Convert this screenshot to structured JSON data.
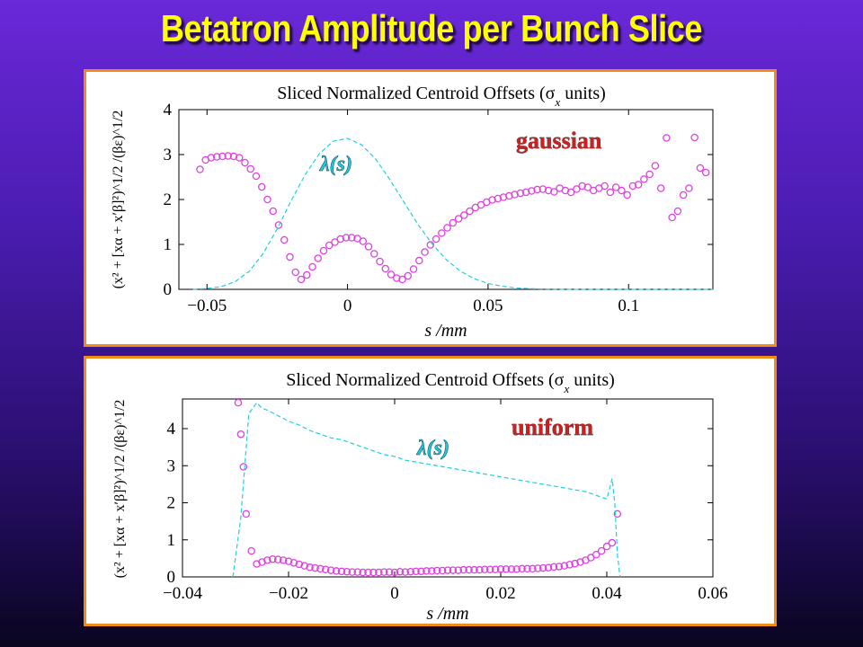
{
  "slide": {
    "title": "Betatron Amplitude per Bunch Slice"
  },
  "chart_data": [
    {
      "type": "scatter",
      "title": "Sliced Normalized Centroid Offsets (σ",
      "title_sub": "x",
      "title_tail": " units)",
      "ylabel": "(x² + [xα + x′β]²)^1/2 /(βε)^1/2",
      "xlabel": "s /mm",
      "annotation": "gaussian",
      "curve_label": "λ(s)",
      "xlim": [
        -0.06,
        0.13
      ],
      "ylim": [
        0,
        4
      ],
      "xticks": [
        -0.05,
        0,
        0.05,
        0.1
      ],
      "xtick_labels": [
        "−0.05",
        "0",
        "0.05",
        "0.1"
      ],
      "yticks": [
        0,
        1,
        2,
        3,
        4
      ],
      "ytick_labels": [
        "0",
        "1",
        "2",
        "3",
        "4"
      ],
      "colors": {
        "points": "#e040e0",
        "curve": "#20d0e0"
      },
      "series": [
        {
          "kind": "points",
          "x": [
            -0.0525,
            -0.0505,
            -0.0485,
            -0.0465,
            -0.0445,
            -0.0425,
            -0.0405,
            -0.0385,
            -0.0365,
            -0.0345,
            -0.0325,
            -0.0305,
            -0.0285,
            -0.0265,
            -0.0245,
            -0.0225,
            -0.0205,
            -0.0185,
            -0.0165,
            -0.0145,
            -0.0125,
            -0.0105,
            -0.0085,
            -0.0065,
            -0.0045,
            -0.0025,
            -0.0005,
            0.0015,
            0.0035,
            0.0055,
            0.0075,
            0.0095,
            0.0115,
            0.0135,
            0.0155,
            0.0175,
            0.0195,
            0.0215,
            0.0235,
            0.0255,
            0.0275,
            0.0295,
            0.0315,
            0.0335,
            0.0355,
            0.0375,
            0.0395,
            0.0415,
            0.0435,
            0.0455,
            0.0475,
            0.0495,
            0.0515,
            0.0535,
            0.0555,
            0.0575,
            0.0595,
            0.0615,
            0.0635,
            0.0655,
            0.0675,
            0.0695,
            0.0715,
            0.0735,
            0.0755,
            0.0775,
            0.0795,
            0.0815,
            0.0835,
            0.0855,
            0.0875,
            0.0895,
            0.0915,
            0.0935,
            0.0955,
            0.0975,
            0.0995,
            0.1015,
            0.1035,
            0.1055,
            0.1075,
            0.1095,
            0.1115,
            0.1135,
            0.1155,
            0.1175,
            0.1195,
            0.1215,
            0.1235,
            0.1255,
            0.1275
          ],
          "y": [
            2.67,
            2.88,
            2.93,
            2.95,
            2.96,
            2.97,
            2.96,
            2.93,
            2.82,
            2.68,
            2.52,
            2.28,
            2.0,
            1.74,
            1.43,
            1.1,
            0.72,
            0.38,
            0.22,
            0.32,
            0.5,
            0.69,
            0.86,
            0.98,
            1.05,
            1.12,
            1.15,
            1.15,
            1.13,
            1.07,
            0.95,
            0.79,
            0.62,
            0.46,
            0.33,
            0.25,
            0.22,
            0.3,
            0.45,
            0.64,
            0.83,
            0.99,
            1.12,
            1.25,
            1.37,
            1.48,
            1.57,
            1.65,
            1.74,
            1.82,
            1.88,
            1.94,
            1.99,
            2.02,
            2.05,
            2.08,
            2.11,
            2.14,
            2.16,
            2.19,
            2.22,
            2.23,
            2.2,
            2.17,
            2.25,
            2.2,
            2.16,
            2.23,
            2.3,
            2.27,
            2.2,
            2.25,
            2.3,
            2.16,
            2.27,
            2.2,
            2.1,
            2.3,
            2.33,
            2.45,
            2.56,
            2.75,
            2.25,
            3.37,
            1.6,
            1.74,
            2.1,
            2.25,
            3.38,
            2.7,
            2.6
          ]
        },
        {
          "kind": "line-dashed",
          "x": [
            -0.055,
            -0.05,
            -0.045,
            -0.04,
            -0.035,
            -0.03,
            -0.025,
            -0.02,
            -0.015,
            -0.01,
            -0.005,
            0,
            0.005,
            0.01,
            0.015,
            0.02,
            0.025,
            0.03,
            0.035,
            0.04,
            0.045,
            0.05,
            0.055,
            0.06,
            0.065,
            0.07,
            0.075,
            0.08,
            0.09,
            0.1,
            0.11,
            0.12,
            0.13
          ],
          "y": [
            0.0,
            0.02,
            0.06,
            0.17,
            0.4,
            0.8,
            1.35,
            1.98,
            2.56,
            3.02,
            3.3,
            3.36,
            3.22,
            2.9,
            2.45,
            1.95,
            1.45,
            1.02,
            0.67,
            0.41,
            0.24,
            0.13,
            0.07,
            0.03,
            0.015,
            0.007,
            0.003,
            0.001,
            0,
            0,
            0,
            0,
            0
          ]
        }
      ]
    },
    {
      "type": "scatter",
      "title": "Sliced Normalized Centroid Offsets (σ",
      "title_sub": "x",
      "title_tail": " units)",
      "ylabel": "(x² + [xα + x′β]²)^1/2 /(βε)^1/2",
      "xlabel": "s /mm",
      "annotation": "uniform",
      "curve_label": "λ(s)",
      "xlim": [
        -0.04,
        0.06
      ],
      "ylim": [
        0,
        4.8
      ],
      "xticks": [
        -0.04,
        -0.02,
        0,
        0.02,
        0.04,
        0.06
      ],
      "xtick_labels": [
        "−0.04",
        "−0.02",
        "0",
        "0.02",
        "0.04",
        "0.06"
      ],
      "yticks": [
        0,
        1,
        2,
        3,
        4
      ],
      "ytick_labels": [
        "0",
        "1",
        "2",
        "3",
        "4"
      ],
      "colors": {
        "points": "#e040e0",
        "curve": "#20d0e0"
      },
      "series": [
        {
          "kind": "points",
          "x": [
            -0.0295,
            -0.029,
            -0.0285,
            -0.028,
            -0.027,
            -0.026,
            -0.025,
            -0.024,
            -0.023,
            -0.022,
            -0.021,
            -0.02,
            -0.019,
            -0.018,
            -0.017,
            -0.016,
            -0.015,
            -0.014,
            -0.013,
            -0.012,
            -0.011,
            -0.01,
            -0.009,
            -0.008,
            -0.007,
            -0.006,
            -0.005,
            -0.004,
            -0.003,
            -0.002,
            -0.001,
            0.0,
            0.001,
            0.002,
            0.003,
            0.004,
            0.005,
            0.006,
            0.007,
            0.008,
            0.009,
            0.01,
            0.011,
            0.012,
            0.013,
            0.014,
            0.015,
            0.016,
            0.017,
            0.018,
            0.019,
            0.02,
            0.021,
            0.022,
            0.023,
            0.024,
            0.025,
            0.026,
            0.027,
            0.028,
            0.029,
            0.03,
            0.031,
            0.032,
            0.033,
            0.034,
            0.035,
            0.036,
            0.037,
            0.038,
            0.039,
            0.04,
            0.041,
            0.042
          ],
          "y": [
            4.7,
            3.85,
            2.97,
            1.7,
            0.7,
            0.35,
            0.4,
            0.45,
            0.48,
            0.47,
            0.45,
            0.42,
            0.38,
            0.34,
            0.3,
            0.26,
            0.24,
            0.22,
            0.2,
            0.18,
            0.16,
            0.15,
            0.14,
            0.13,
            0.13,
            0.12,
            0.12,
            0.12,
            0.12,
            0.13,
            0.13,
            0.12,
            0.14,
            0.13,
            0.14,
            0.15,
            0.15,
            0.16,
            0.16,
            0.17,
            0.17,
            0.18,
            0.18,
            0.18,
            0.19,
            0.19,
            0.19,
            0.19,
            0.2,
            0.2,
            0.2,
            0.21,
            0.21,
            0.21,
            0.21,
            0.22,
            0.22,
            0.22,
            0.23,
            0.24,
            0.25,
            0.27,
            0.28,
            0.3,
            0.33,
            0.36,
            0.4,
            0.45,
            0.52,
            0.6,
            0.7,
            0.82,
            0.92,
            1.7
          ]
        },
        {
          "kind": "line-dashed",
          "x": [
            -0.0305,
            -0.029,
            -0.0275,
            -0.026,
            -0.025,
            -0.024,
            -0.022,
            -0.02,
            -0.018,
            -0.016,
            -0.014,
            -0.012,
            -0.01,
            -0.008,
            -0.006,
            -0.004,
            -0.002,
            0,
            0.002,
            0.004,
            0.006,
            0.008,
            0.01,
            0.012,
            0.014,
            0.016,
            0.018,
            0.02,
            0.022,
            0.024,
            0.026,
            0.028,
            0.03,
            0.032,
            0.034,
            0.036,
            0.038,
            0.04,
            0.041,
            0.0415,
            0.042,
            0.0425
          ],
          "y": [
            0,
            1.6,
            4.4,
            4.7,
            4.55,
            4.5,
            4.35,
            4.2,
            4.1,
            3.95,
            3.85,
            3.75,
            3.7,
            3.6,
            3.5,
            3.4,
            3.3,
            3.25,
            3.15,
            3.1,
            3.05,
            3.0,
            2.95,
            2.9,
            2.85,
            2.8,
            2.75,
            2.7,
            2.65,
            2.6,
            2.55,
            2.5,
            2.45,
            2.4,
            2.35,
            2.3,
            2.2,
            2.1,
            2.65,
            2.0,
            0.6,
            0
          ]
        }
      ]
    }
  ]
}
